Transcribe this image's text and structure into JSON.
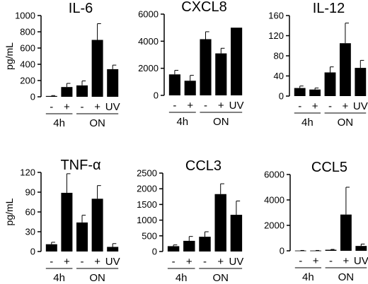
{
  "chart_data": [
    {
      "type": "bar",
      "title": "IL-6",
      "ylabel": "pg/mL",
      "ylim": [
        0,
        1000
      ],
      "yticks": [
        "0",
        "200",
        "400",
        "600",
        "800",
        "1000"
      ],
      "categories": [
        "-",
        "+",
        "-",
        "+",
        "UV"
      ],
      "values": [
        10,
        120,
        140,
        700,
        340
      ],
      "errors": [
        5,
        45,
        55,
        200,
        50
      ],
      "groups": [
        {
          "label": "4h",
          "indices": [
            0,
            1
          ]
        },
        {
          "label": "ON",
          "indices": [
            2,
            3,
            4
          ]
        }
      ]
    },
    {
      "type": "bar",
      "title": "CXCL8",
      "ylabel": "",
      "ylim": [
        0,
        6000
      ],
      "yticks": [
        "0",
        "2000",
        "4000",
        "6000"
      ],
      "categories": [
        "-",
        "+",
        "-",
        "+",
        "UV"
      ],
      "values": [
        1550,
        1080,
        4150,
        3100,
        5000
      ],
      "errors": [
        300,
        400,
        550,
        380,
        0
      ],
      "groups": [
        {
          "label": "4h",
          "indices": [
            0,
            1
          ]
        },
        {
          "label": "ON",
          "indices": [
            2,
            3,
            4
          ]
        }
      ]
    },
    {
      "type": "bar",
      "title": "IL-12",
      "ylabel": "",
      "ylim": [
        0,
        160
      ],
      "yticks": [
        "0",
        "40",
        "80",
        "120",
        "160"
      ],
      "categories": [
        "-",
        "+",
        "-",
        "+",
        "UV"
      ],
      "values": [
        16,
        13,
        47,
        105,
        56
      ],
      "errors": [
        4,
        3,
        11,
        40,
        15
      ],
      "groups": [
        {
          "label": "4h",
          "indices": [
            0,
            1
          ]
        },
        {
          "label": "ON",
          "indices": [
            2,
            3,
            4
          ]
        }
      ]
    },
    {
      "type": "bar",
      "title": "TNF-α",
      "ylabel": "pg/mL",
      "ylim": [
        0,
        120
      ],
      "yticks": [
        "0",
        "30",
        "60",
        "90",
        "120"
      ],
      "categories": [
        "-",
        "+",
        "-",
        "+",
        "UV"
      ],
      "values": [
        11,
        89,
        44,
        80,
        7
      ],
      "errors": [
        3,
        29,
        11,
        20,
        5
      ],
      "groups": [
        {
          "label": "4h",
          "indices": [
            0,
            1
          ]
        },
        {
          "label": "ON",
          "indices": [
            2,
            3,
            4
          ]
        }
      ]
    },
    {
      "type": "bar",
      "title": "CCL3",
      "ylabel": "",
      "ylim": [
        0,
        2500
      ],
      "yticks": [
        "0",
        "500",
        "1000",
        "1500",
        "2000",
        "2500"
      ],
      "categories": [
        "-",
        "+",
        "-",
        "+",
        "UV"
      ],
      "values": [
        170,
        340,
        470,
        1830,
        1170
      ],
      "errors": [
        40,
        140,
        160,
        330,
        440
      ],
      "groups": [
        {
          "label": "4h",
          "indices": [
            0,
            1
          ]
        },
        {
          "label": "ON",
          "indices": [
            2,
            3,
            4
          ]
        }
      ]
    },
    {
      "type": "bar",
      "title": "CCL5",
      "ylabel": "",
      "ylim": [
        0,
        6000
      ],
      "yticks": [
        "0",
        "2000",
        "4000",
        "6000"
      ],
      "categories": [
        "-",
        "+",
        "-",
        "+",
        "UV"
      ],
      "values": [
        20,
        20,
        80,
        2850,
        380
      ],
      "errors": [
        10,
        10,
        30,
        2150,
        150
      ],
      "groups": [
        {
          "label": "4h",
          "indices": [
            0,
            1
          ]
        },
        {
          "label": "ON",
          "indices": [
            2,
            3,
            4
          ]
        }
      ]
    }
  ]
}
